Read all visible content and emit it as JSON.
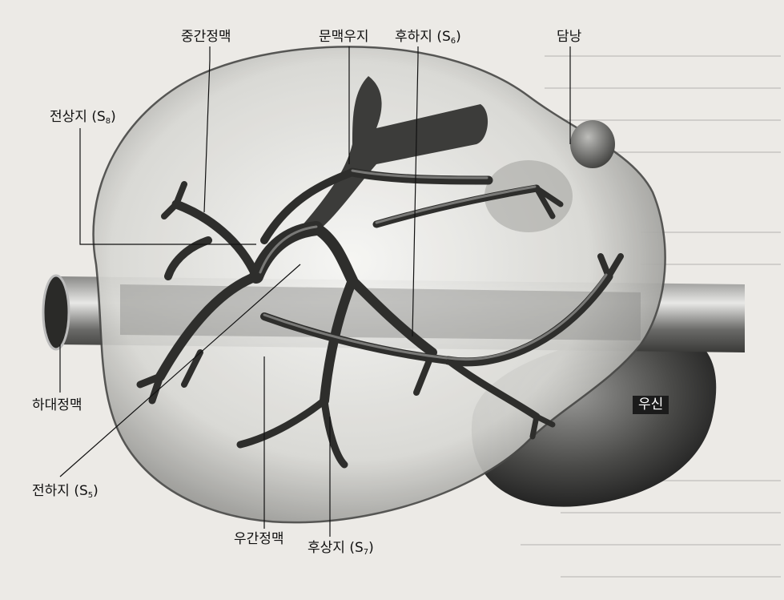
{
  "labels": {
    "middle_hepatic_vein": "중간정맥",
    "portal_vein_right": "문맥우지",
    "posterior_inferior": {
      "text": "후하지 (S",
      "sub": "6",
      "close": ")"
    },
    "gallbladder": "담낭",
    "anterior_superior": {
      "text": "전상지 (S",
      "sub": "8",
      "close": ")"
    },
    "inferior_vena_cava": "하대정맥",
    "right_kidney": "우신",
    "anterior_inferior": {
      "text": "전하지 (S",
      "sub": "5",
      "close": ")"
    },
    "right_hepatic_vein": "우간정맥",
    "posterior_superior": {
      "text": "후상지 (S",
      "sub": "7",
      "close": ")"
    }
  }
}
